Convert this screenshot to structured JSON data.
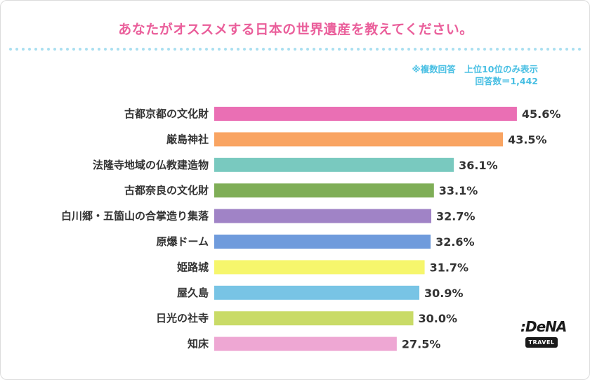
{
  "title": "あなたがオススメする日本の世界遺産を教えてください。",
  "note": {
    "line1": "※複数回答　上位10位のみ表示",
    "line2": "回答数＝1,442"
  },
  "logo": {
    "brand": ":DeNA",
    "sub": "TRAVEL"
  },
  "chart_data": {
    "type": "bar",
    "orientation": "horizontal",
    "title": "あなたがオススメする日本の世界遺産を教えてください。",
    "categories": [
      "古都京都の文化財",
      "厳島神社",
      "法隆寺地域の仏教建造物",
      "古都奈良の文化財",
      "白川郷・五箇山の合掌造り集落",
      "原爆ドーム",
      "姫路城",
      "屋久島",
      "日光の社寺",
      "知床"
    ],
    "values": [
      45.6,
      43.5,
      36.1,
      33.1,
      32.7,
      32.6,
      31.7,
      30.9,
      30.0,
      27.5
    ],
    "value_labels": [
      "45.6%",
      "43.5%",
      "36.1%",
      "33.1%",
      "32.7%",
      "32.6%",
      "31.7%",
      "30.9%",
      "30.0%",
      "27.5%"
    ],
    "colors": [
      "#ea6fb4",
      "#f9a462",
      "#79c9bf",
      "#7fae57",
      "#a083c6",
      "#6f9bdc",
      "#f6f66c",
      "#78c4e5",
      "#c9db67",
      "#eea7d3"
    ],
    "unit": "%",
    "xlim": [
      0,
      50
    ],
    "grid": false,
    "legend": "none"
  }
}
